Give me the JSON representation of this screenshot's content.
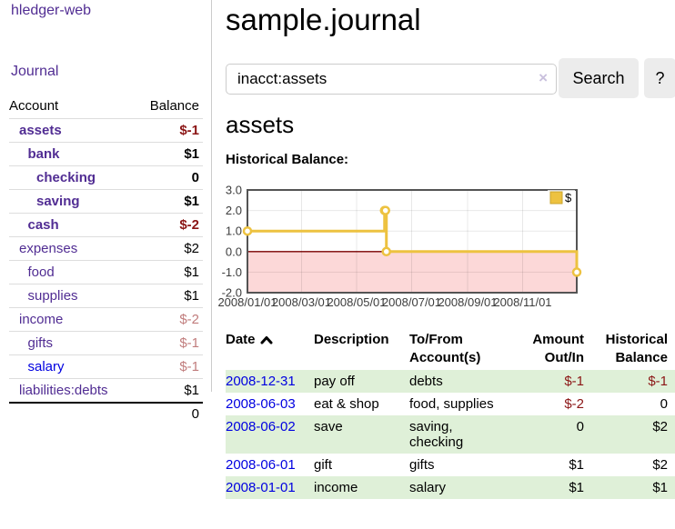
{
  "sidebar": {
    "app_title": "hledger-web",
    "nav": {
      "journal_label": "Journal"
    },
    "accounts_table": {
      "col_account": "Account",
      "col_balance": "Balance",
      "accounts": [
        {
          "name": "assets",
          "depth": 0,
          "bold": true,
          "balance": "$-1",
          "neg": "strong"
        },
        {
          "name": "bank",
          "depth": 1,
          "bold": true,
          "balance": "$1"
        },
        {
          "name": "checking",
          "depth": 2,
          "bold": true,
          "balance": "0"
        },
        {
          "name": "saving",
          "depth": 2,
          "bold": true,
          "balance": "$1"
        },
        {
          "name": "cash",
          "depth": 1,
          "bold": true,
          "balance": "$-2",
          "neg": "strong"
        },
        {
          "name": "expenses",
          "depth": 0,
          "bold": false,
          "balance": "$2"
        },
        {
          "name": "food",
          "depth": 1,
          "bold": false,
          "balance": "$1"
        },
        {
          "name": "supplies",
          "depth": 1,
          "bold": false,
          "balance": "$1"
        },
        {
          "name": "income",
          "depth": 0,
          "bold": false,
          "balance": "$-2",
          "neg": "muted"
        },
        {
          "name": "gifts",
          "depth": 1,
          "bold": false,
          "balance": "$-1",
          "neg": "muted"
        },
        {
          "name": "salary",
          "depth": 1,
          "bold": false,
          "balance": "$-1",
          "neg": "muted",
          "blue": true
        },
        {
          "name": "liabilities:debts",
          "depth": 0,
          "bold": false,
          "balance": "$1"
        }
      ],
      "total": "0"
    }
  },
  "main": {
    "title": "sample.journal",
    "search": {
      "value": "inacct:assets",
      "clear_icon": "×",
      "search_label": "Search",
      "help_label": "?"
    },
    "account_heading": "assets",
    "chart_label": "Historical Balance:"
  },
  "chart_data": {
    "type": "line",
    "title": "Historical Balance:",
    "step": true,
    "series": [
      {
        "name": "$",
        "color": "#EDC240",
        "points": [
          [
            "2008-01-01",
            1
          ],
          [
            "2008-06-01",
            2
          ],
          [
            "2008-06-02",
            2
          ],
          [
            "2008-06-03",
            0
          ],
          [
            "2008-12-31",
            -1
          ]
        ]
      }
    ],
    "xlim": [
      "2008-01-01",
      "2008-12-31"
    ],
    "ylim": [
      -2,
      3
    ],
    "x_ticks": [
      "2008/01/01",
      "2008/03/01",
      "2008/05/01",
      "2008/07/01",
      "2008/09/01",
      "2008/11/01"
    ],
    "y_ticks": [
      "3.0",
      "2.0",
      "1.0",
      "0.0",
      "-1.0",
      "-2.0"
    ],
    "grid": true,
    "legend_position": "top-right",
    "legend": {
      "label": "$",
      "color": "#EDC240"
    },
    "colors": {
      "negative_region": "#fcd8d8",
      "zero_line": "#7a0000",
      "plot_border": "#545454",
      "grid_line": "rgba(0,0,0,0.09)",
      "tick_text": "#3c3c3c",
      "marker_fill": "#ffffff"
    }
  },
  "register": {
    "columns": {
      "date": "Date",
      "description": "Description",
      "accounts_l1": "To/From",
      "accounts_l2": "Account(s)",
      "amount_l1": "Amount",
      "amount_l2": "Out/In",
      "balance_l1": "Historical",
      "balance_l2": "Balance"
    },
    "rows": [
      {
        "date": "2008-12-31",
        "description": "pay off",
        "accounts": [
          "debts"
        ],
        "amount": "$-1",
        "amount_neg": true,
        "balance": "$-1",
        "balance_neg": true
      },
      {
        "date": "2008-06-03",
        "description": "eat & shop",
        "accounts": [
          "food, supplies"
        ],
        "amount": "$-2",
        "amount_neg": true,
        "balance": "0",
        "balance_neg": false
      },
      {
        "date": "2008-06-02",
        "description": "save",
        "accounts": [
          "saving,",
          "checking"
        ],
        "amount": "0",
        "amount_neg": false,
        "balance": "$2",
        "balance_neg": false
      },
      {
        "date": "2008-06-01",
        "description": "gift",
        "accounts": [
          "gifts"
        ],
        "amount": "$1",
        "amount_neg": false,
        "balance": "$2",
        "balance_neg": false
      },
      {
        "date": "2008-01-01",
        "description": "income",
        "accounts": [
          "salary"
        ],
        "amount": "$1",
        "amount_neg": false,
        "balance": "$1",
        "balance_neg": false
      }
    ]
  },
  "colors": {
    "link_purple": "#512d93",
    "link_blue": "#0000e0",
    "negative_strong": "#8b1515",
    "negative_muted": "#c17d7d",
    "row_green": "#dff0d8",
    "button_gray": "#ececec"
  }
}
